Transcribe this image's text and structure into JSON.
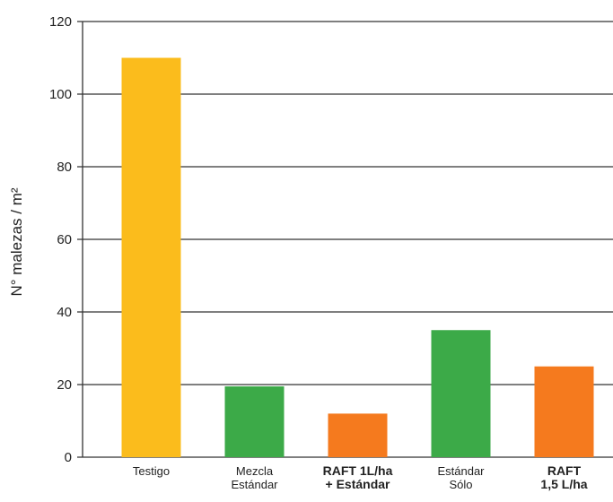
{
  "chart_data": {
    "type": "bar",
    "ylabel": "N° malezas / m²",
    "ylim": [
      0,
      120
    ],
    "yticks": [
      0,
      20,
      40,
      60,
      80,
      100,
      120
    ],
    "grid": true,
    "categories": [
      {
        "lines": [
          "Testigo"
        ],
        "bold": false
      },
      {
        "lines": [
          "Mezcla",
          "Estándar"
        ],
        "bold": false
      },
      {
        "lines": [
          "RAFT 1L/ha",
          "+ Estándar"
        ],
        "bold": true
      },
      {
        "lines": [
          "Estándar",
          "Sólo"
        ],
        "bold": false
      },
      {
        "lines": [
          "RAFT",
          "1,5 L/ha"
        ],
        "bold": true
      }
    ],
    "values": [
      110,
      19.5,
      12,
      35,
      25
    ],
    "colors": [
      "#FBBC1C",
      "#3CAA48",
      "#F57A1E",
      "#3CAA48",
      "#F57A1E"
    ]
  }
}
